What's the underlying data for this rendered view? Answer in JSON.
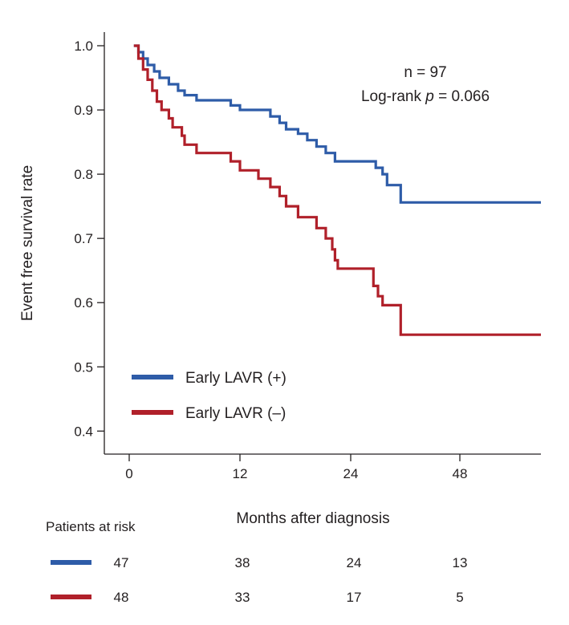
{
  "chart_data": {
    "type": "line",
    "subtype": "kaplan-meier step curve",
    "xlabel": "Months after diagnosis",
    "ylabel": "Event free survival rate",
    "x_ticks": [
      0,
      12,
      24,
      48
    ],
    "y_ticks": [
      "1.0",
      "0.9",
      "0.8",
      "0.7",
      "0.6",
      "0.5",
      "0.4"
    ],
    "y_range": [
      0.38,
      1.03
    ],
    "annotations": {
      "n": "n = 97",
      "logrank_prefix": "Log-rank ",
      "logrank_p": "p",
      "logrank_suffix": " = 0.066"
    },
    "series": [
      {
        "name": "Early LAVR (+)",
        "color": "#2e5ca8",
        "points": [
          [
            0.5,
            1.0
          ],
          [
            1.0,
            0.99
          ],
          [
            1.5,
            0.98
          ],
          [
            2.0,
            0.97
          ],
          [
            2.7,
            0.96
          ],
          [
            3.3,
            0.95
          ],
          [
            4.3,
            0.94
          ],
          [
            5.3,
            0.93
          ],
          [
            6.0,
            0.923
          ],
          [
            7.3,
            0.915
          ],
          [
            11.0,
            0.907
          ],
          [
            12.0,
            0.9
          ],
          [
            14.0,
            0.9
          ],
          [
            15.3,
            0.89
          ],
          [
            16.3,
            0.88
          ],
          [
            17.0,
            0.87
          ],
          [
            18.3,
            0.863
          ],
          [
            19.3,
            0.853
          ],
          [
            20.3,
            0.843
          ],
          [
            21.3,
            0.833
          ],
          [
            22.3,
            0.82
          ],
          [
            29.5,
            0.81
          ],
          [
            31.0,
            0.8
          ],
          [
            32.0,
            0.783
          ],
          [
            34.5,
            0.783
          ],
          [
            35.0,
            0.756
          ],
          [
            44.0,
            0.756
          ]
        ]
      },
      {
        "name": "Early LAVR (–)",
        "color": "#b0202a",
        "points": [
          [
            0.5,
            1.0
          ],
          [
            1.0,
            0.98
          ],
          [
            1.5,
            0.963
          ],
          [
            2.0,
            0.947
          ],
          [
            2.5,
            0.93
          ],
          [
            3.0,
            0.913
          ],
          [
            3.5,
            0.9
          ],
          [
            4.3,
            0.887
          ],
          [
            4.7,
            0.873
          ],
          [
            5.7,
            0.86
          ],
          [
            6.0,
            0.846
          ],
          [
            7.3,
            0.833
          ],
          [
            11.0,
            0.82
          ],
          [
            12.0,
            0.806
          ],
          [
            14.0,
            0.793
          ],
          [
            15.3,
            0.78
          ],
          [
            16.3,
            0.766
          ],
          [
            17.0,
            0.75
          ],
          [
            18.3,
            0.733
          ],
          [
            20.3,
            0.716
          ],
          [
            21.3,
            0.7
          ],
          [
            22.0,
            0.683
          ],
          [
            22.3,
            0.666
          ],
          [
            22.6,
            0.653
          ],
          [
            29.0,
            0.626
          ],
          [
            30.0,
            0.61
          ],
          [
            31.0,
            0.596
          ],
          [
            34.5,
            0.596
          ],
          [
            35.0,
            0.55
          ],
          [
            44.0,
            0.55
          ]
        ]
      }
    ],
    "risk_table": {
      "title": "Patients at risk",
      "rows": [
        {
          "color": "#2e5ca8",
          "values": [
            "47",
            "38",
            "24",
            "13"
          ]
        },
        {
          "color": "#b0202a",
          "values": [
            "48",
            "33",
            "17",
            "5"
          ]
        }
      ]
    }
  }
}
